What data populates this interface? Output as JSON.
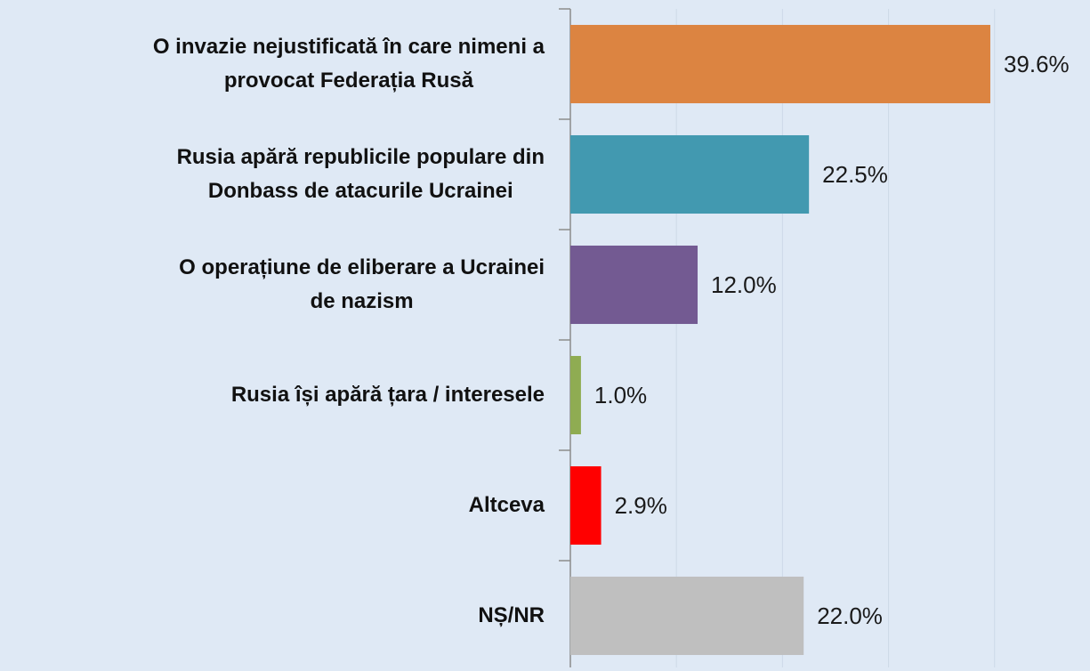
{
  "chart_data": {
    "type": "barh",
    "categories": [
      [
        "O invazie nejustificată în care nimeni a",
        "provocat Federația Rusă"
      ],
      [
        "Rusia apără republicile populare din",
        "Donbass de atacurile Ucrainei"
      ],
      [
        "O operațiune de eliberare a Ucrainei",
        "de nazism"
      ],
      [
        "Rusia își apără țara / interesele"
      ],
      [
        "Altceva"
      ],
      [
        "NȘ/NR"
      ]
    ],
    "values": [
      39.6,
      22.5,
      12.0,
      1.0,
      2.9,
      22.0
    ],
    "value_labels": [
      "39.6%",
      "22.5%",
      "12.0%",
      "1.0%",
      "2.9%",
      "22.0%"
    ],
    "colors": [
      "#dc8441",
      "#4299b0",
      "#735a92",
      "#8fac52",
      "#ff0000",
      "#bfbfbf"
    ],
    "xlim": [
      0,
      49
    ],
    "xticks": [
      0,
      10,
      20,
      30,
      40
    ],
    "grid": true
  }
}
